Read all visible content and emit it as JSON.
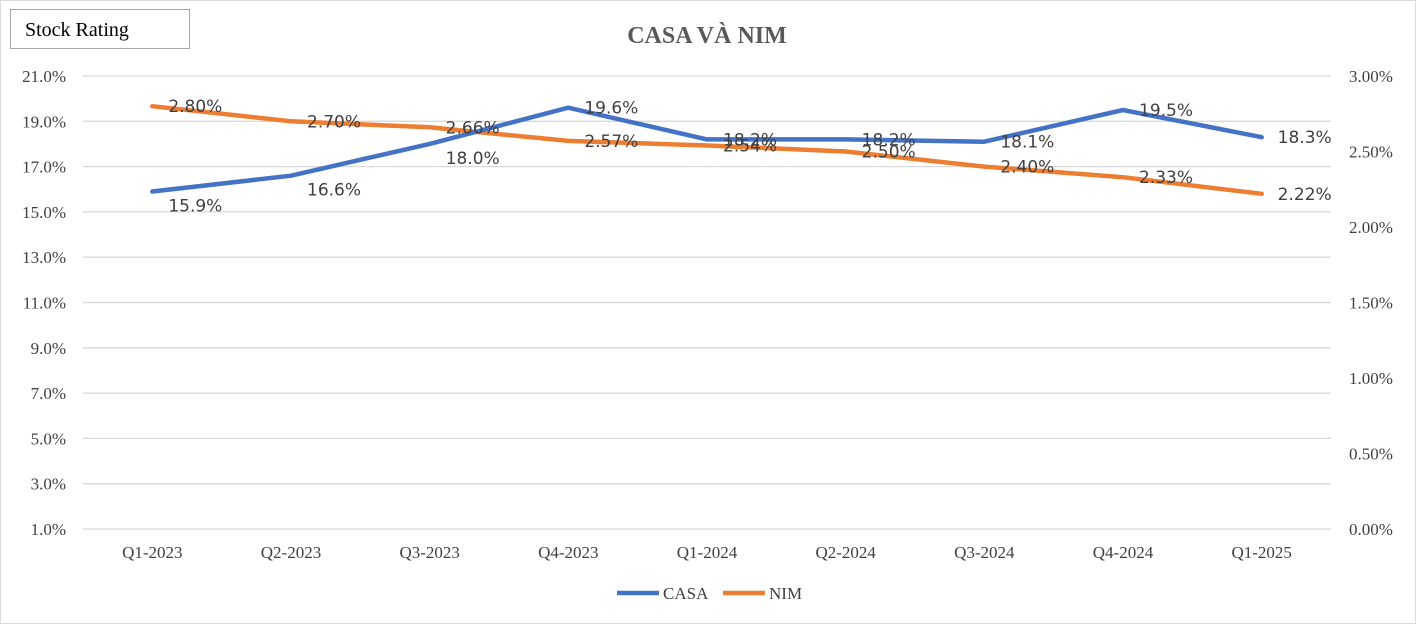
{
  "badge": {
    "label": "Stock Rating"
  },
  "chart_data": {
    "type": "line",
    "title": "CASA VÀ NIM",
    "categories": [
      "Q1-2023",
      "Q2-2023",
      "Q3-2023",
      "Q4-2023",
      "Q1-2024",
      "Q2-2024",
      "Q3-2024",
      "Q4-2024",
      "Q1-2025"
    ],
    "y_left": {
      "range": [
        1.0,
        21.0
      ],
      "ticks": [
        "21.0%",
        "19.0%",
        "17.0%",
        "15.0%",
        "13.0%",
        "11.0%",
        "9.0%",
        "7.0%",
        "5.0%",
        "3.0%",
        "1.0%"
      ],
      "tick_values": [
        21,
        19,
        17,
        15,
        13,
        11,
        9,
        7,
        5,
        3,
        1
      ]
    },
    "y_right": {
      "range": [
        0.0,
        3.0
      ],
      "ticks": [
        "3.00%",
        "2.50%",
        "2.00%",
        "1.50%",
        "1.00%",
        "0.50%",
        "0.00%"
      ],
      "tick_values": [
        3.0,
        2.5,
        2.0,
        1.5,
        1.0,
        0.5,
        0.0
      ]
    },
    "grid": true,
    "legend_position": "bottom",
    "series": [
      {
        "name": "CASA",
        "axis": "left",
        "color": "#4472c4",
        "values": [
          15.9,
          16.6,
          18.0,
          19.6,
          18.2,
          18.2,
          18.1,
          19.5,
          18.3
        ],
        "labels": [
          "15.9%",
          "16.6%",
          "18.0%",
          "19.6%",
          "18.2%",
          "18.2%",
          "18.1%",
          "19.5%",
          "18.3%"
        ]
      },
      {
        "name": "NIM",
        "axis": "right",
        "color": "#ed7d31",
        "values": [
          2.8,
          2.7,
          2.66,
          2.57,
          2.54,
          2.5,
          2.4,
          2.33,
          2.22
        ],
        "labels": [
          "2.80%",
          "2.70%",
          "2.66%",
          "2.57%",
          "2.54%",
          "2.50%",
          "2.40%",
          "2.33%",
          "2.22%"
        ]
      }
    ]
  }
}
